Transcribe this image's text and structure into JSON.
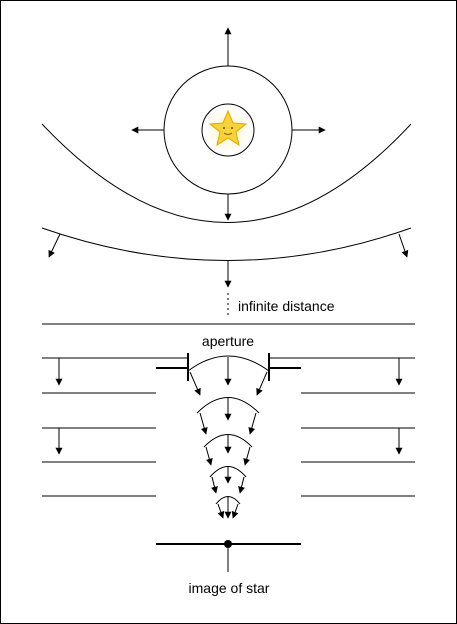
{
  "labels": {
    "infinite_distance": "infinite distance",
    "aperture": "aperture",
    "image_of_star": "image of star"
  },
  "colors": {
    "stroke": "#000000",
    "star_fill": "#f7d23a",
    "star_glow": "#fff3b0",
    "star_stroke": "#e0a800"
  },
  "icons": {
    "star": "star-icon"
  }
}
